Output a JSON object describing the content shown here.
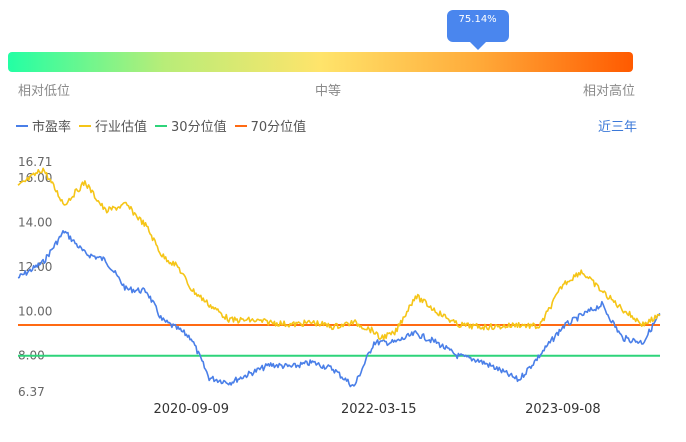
{
  "indicator": {
    "percentile_label": "75.14%",
    "percentile": 0.7514,
    "scale_labels": [
      "相对低位",
      "中等",
      "相对高位"
    ],
    "gradient_colors": [
      "#23ffa4",
      "#b8ed78",
      "#ffe46b",
      "#ffab3a",
      "#ff5a00"
    ],
    "bubble_color": "#4a86ee"
  },
  "legend": [
    {
      "label": "市盈率",
      "color": "#4a7fe8"
    },
    {
      "label": "行业估值",
      "color": "#f5c518"
    },
    {
      "label": "30分位值",
      "color": "#2ed47a"
    },
    {
      "label": "70分位值",
      "color": "#ff6a13"
    }
  ],
  "range_button": "近三年",
  "chart_data": {
    "type": "line",
    "x_start": "2019-04-18",
    "x_end": "2024-06-20",
    "x_tick_labels": [
      "2020-09-09",
      "2022-03-15",
      "2023-09-08"
    ],
    "y_tick_labels": [
      "16.71",
      "16.00",
      "14.00",
      "12.00",
      "10.00",
      "8.00",
      "6.37"
    ],
    "ylim": [
      6.37,
      16.71
    ],
    "percentile_30": 8.0,
    "percentile_70": 9.38,
    "series": [
      {
        "name": "市盈率",
        "color": "#4a7fe8",
        "x": [
          "2019-04-18",
          "2019-07-01",
          "2019-09-01",
          "2019-11-01",
          "2020-01-01",
          "2020-03-01",
          "2020-05-01",
          "2020-06-15",
          "2020-08-01",
          "2020-09-09",
          "2020-11-01",
          "2021-01-01",
          "2021-03-01",
          "2021-05-01",
          "2021-07-01",
          "2021-09-01",
          "2021-11-01",
          "2022-01-01",
          "2022-03-01",
          "2022-03-15",
          "2022-05-01",
          "2022-07-01",
          "2022-09-01",
          "2022-11-01",
          "2023-01-01",
          "2023-03-01",
          "2023-05-01",
          "2023-07-01",
          "2023-09-08",
          "2023-11-01",
          "2024-01-01",
          "2024-03-01",
          "2024-05-01",
          "2024-06-20"
        ],
        "values": [
          11.5,
          12.2,
          13.6,
          12.6,
          12.3,
          11.0,
          10.9,
          9.6,
          9.2,
          8.8,
          7.0,
          6.8,
          7.2,
          7.6,
          7.5,
          7.7,
          7.4,
          6.6,
          8.6,
          8.6,
          8.6,
          9.0,
          8.6,
          8.0,
          7.8,
          7.4,
          6.9,
          8.0,
          9.3,
          9.8,
          10.3,
          8.8,
          8.6,
          9.9
        ]
      },
      {
        "name": "行业估值",
        "color": "#f5c518",
        "x": [
          "2019-04-18",
          "2019-07-01",
          "2019-09-01",
          "2019-11-01",
          "2020-01-01",
          "2020-03-01",
          "2020-05-01",
          "2020-06-15",
          "2020-08-01",
          "2020-09-09",
          "2020-11-01",
          "2021-01-01",
          "2021-03-01",
          "2021-05-01",
          "2021-07-01",
          "2021-09-01",
          "2021-11-01",
          "2022-01-01",
          "2022-03-01",
          "2022-03-15",
          "2022-05-01",
          "2022-07-01",
          "2022-09-01",
          "2022-11-01",
          "2023-01-01",
          "2023-03-01",
          "2023-05-01",
          "2023-07-01",
          "2023-09-08",
          "2023-11-01",
          "2024-01-01",
          "2024-03-01",
          "2024-05-01",
          "2024-06-20"
        ],
        "values": [
          15.6,
          16.4,
          14.8,
          15.8,
          14.5,
          14.8,
          13.8,
          12.5,
          12.0,
          11.0,
          10.3,
          9.6,
          9.6,
          9.5,
          9.4,
          9.5,
          9.3,
          9.5,
          9.1,
          8.8,
          9.0,
          10.7,
          10.0,
          9.4,
          9.3,
          9.3,
          9.4,
          9.3,
          11.2,
          11.8,
          10.9,
          10.1,
          9.4,
          9.8
        ]
      }
    ]
  }
}
